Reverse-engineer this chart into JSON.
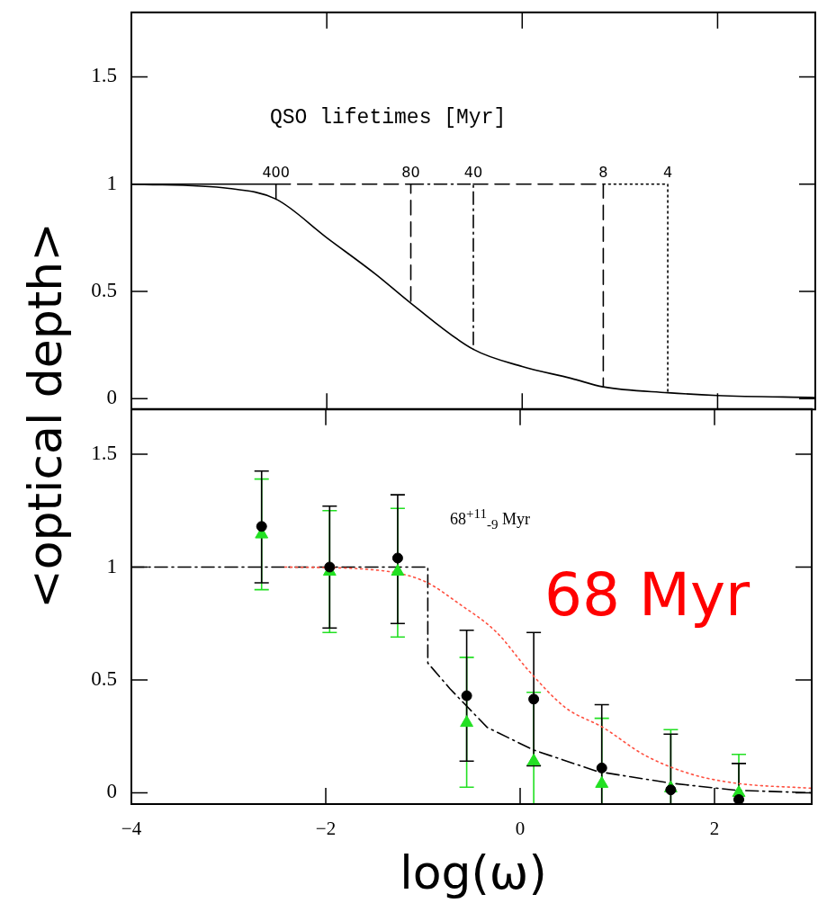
{
  "chart_data": [
    {
      "type": "line",
      "ylabel": "<optical depth>",
      "xlim": [
        -4,
        3
      ],
      "ylim": [
        -0.05,
        1.8
      ],
      "xticks": [
        -4,
        -2,
        0,
        2
      ],
      "yticks": [
        0,
        0.5,
        1,
        1.5
      ],
      "tick_labels": "y",
      "annotations": [
        "QSO lifetimes [Myr]",
        {
          "text": "400",
          "x": -2.52,
          "y": 1
        },
        {
          "text": "80",
          "x": -1.14,
          "y": 1
        },
        {
          "text": "40",
          "x": -0.5,
          "y": 1
        },
        {
          "text": "8",
          "x": 0.83,
          "y": 1
        },
        {
          "text": "4",
          "x": 1.49,
          "y": 1
        }
      ],
      "series": [
        {
          "color": "#000000",
          "line_style": "solid",
          "x": [
            -4,
            -3,
            -2.52,
            -2,
            -1.5,
            -1.14,
            -0.5,
            0,
            0.5,
            0.83,
            1.49,
            2,
            3
          ],
          "values": [
            1,
            0.98,
            0.93,
            0.75,
            0.58,
            0.445,
            0.23,
            0.15,
            0.095,
            0.055,
            0.028,
            0.015,
            0.005
          ]
        },
        {
          "color": "#000000",
          "line_style": "solid",
          "x": [
            -4,
            -2.52,
            -2.52
          ],
          "values": [
            1,
            1,
            0.93
          ]
        },
        {
          "color": "#000000",
          "line_style": "dashed",
          "x": [
            -2.52,
            -1.14,
            -1.14
          ],
          "values": [
            1,
            1,
            0.445
          ]
        },
        {
          "color": "#000000",
          "line_style": "dashdot",
          "x": [
            -1.14,
            -0.5,
            -0.5
          ],
          "values": [
            1,
            1,
            0.23
          ]
        },
        {
          "color": "#000000",
          "line_style": "dashed",
          "x": [
            -0.5,
            0.83,
            0.83
          ],
          "values": [
            1,
            1,
            0.055
          ]
        },
        {
          "color": "#000000",
          "line_style": "dotted",
          "x": [
            0.83,
            1.49,
            1.49
          ],
          "values": [
            1,
            1,
            0.028
          ]
        }
      ]
    },
    {
      "type": "scatter",
      "xlabel": "log(ω)",
      "xlim": [
        -4,
        3
      ],
      "ylim": [
        -0.05,
        1.7
      ],
      "xticks": [
        -4,
        -2,
        0,
        2
      ],
      "yticks": [
        0,
        0.5,
        1,
        1.5
      ],
      "annotations": [
        "68$^{+11}$$_{-9}$ Myr",
        "68 Myr"
      ],
      "series": [
        {
          "type": "line",
          "color": "#000000",
          "line_style": "dashdot",
          "x": [
            -4,
            -0.95,
            -0.95,
            -0.72,
            -0.34,
            0.135,
            0.8,
            1.56,
            2.23,
            3.0
          ],
          "values": [
            1,
            1,
            0.575,
            0.46,
            0.29,
            0.19,
            0.094,
            0.042,
            0.011,
            0.0
          ]
        },
        {
          "type": "line",
          "color": "#ff5040",
          "line_style": "dotted",
          "x": [
            -2.42,
            -1.57,
            -1.0,
            -0.62,
            -0.24,
            0.09,
            0.47,
            0.85,
            1.28,
            1.75,
            2.23,
            3.0
          ],
          "values": [
            1.0,
            0.99,
            0.94,
            0.835,
            0.71,
            0.54,
            0.376,
            0.29,
            0.167,
            0.084,
            0.042,
            0.02
          ]
        },
        {
          "color": "#22e022",
          "marker": "triangle",
          "x": [
            -2.66,
            -1.96,
            -1.26,
            -0.55,
            0.14,
            0.84,
            1.55,
            2.25
          ],
          "values": [
            1.145,
            0.98,
            0.98,
            0.31,
            0.14,
            0.04,
            0.02,
            0.0
          ],
          "errors": [
            [
              0.9,
              1.39
            ],
            [
              0.71,
              1.25
            ],
            [
              0.69,
              1.26
            ],
            [
              0.025,
              0.6
            ],
            [
              -0.05,
              0.445
            ],
            [
              -0.05,
              0.33
            ],
            [
              -0.05,
              0.28
            ],
            [
              -0.05,
              0.17
            ]
          ]
        },
        {
          "color": "#000000",
          "marker": "circle",
          "x": [
            -2.66,
            -1.96,
            -1.26,
            -0.55,
            0.14,
            0.84,
            1.55,
            2.25
          ],
          "values": [
            1.18,
            1.0,
            1.04,
            0.43,
            0.415,
            0.11,
            0.013,
            -0.03
          ],
          "errors": [
            [
              0.93,
              1.425
            ],
            [
              0.73,
              1.27
            ],
            [
              0.75,
              1.32
            ],
            [
              0.14,
              0.72
            ],
            [
              0.12,
              0.71
            ],
            [
              -0.05,
              0.39
            ],
            [
              -0.05,
              0.26
            ],
            [
              -0.05,
              0.13
            ]
          ]
        }
      ]
    }
  ]
}
